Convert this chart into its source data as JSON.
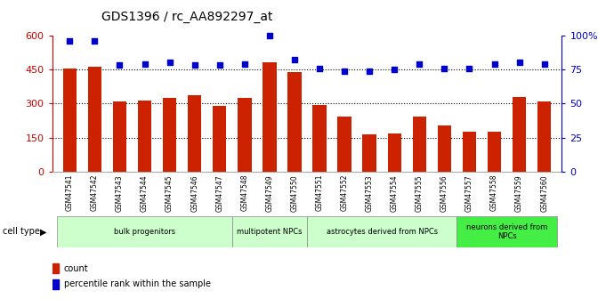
{
  "title": "GDS1396 / rc_AA892297_at",
  "samples": [
    "GSM47541",
    "GSM47542",
    "GSM47543",
    "GSM47544",
    "GSM47545",
    "GSM47546",
    "GSM47547",
    "GSM47548",
    "GSM47549",
    "GSM47550",
    "GSM47551",
    "GSM47552",
    "GSM47553",
    "GSM47554",
    "GSM47555",
    "GSM47556",
    "GSM47557",
    "GSM47558",
    "GSM47559",
    "GSM47560"
  ],
  "counts": [
    455,
    462,
    310,
    315,
    325,
    335,
    290,
    325,
    480,
    440,
    293,
    245,
    165,
    170,
    245,
    205,
    175,
    175,
    330,
    310
  ],
  "percentile": [
    96,
    96,
    78,
    79,
    80,
    78,
    78,
    79,
    100,
    82,
    76,
    74,
    74,
    75,
    79,
    76,
    76,
    79,
    80,
    79
  ],
  "cell_type_labels": [
    "bulk progenitors",
    "multipotent NPCs",
    "astrocytes derived from NPCs",
    "neurons derived from\nNPCs"
  ],
  "cell_type_ranges": [
    [
      0,
      7
    ],
    [
      7,
      10
    ],
    [
      10,
      16
    ],
    [
      16,
      20
    ]
  ],
  "cell_type_colors_light": "#ccffcc",
  "cell_type_color_bright": "#44ee44",
  "bar_color": "#cc2200",
  "dot_color": "#0000cc",
  "ytick_left_color": "#cc0000",
  "ytick_right_color": "#0000cc",
  "title_fontsize": 10,
  "bar_width": 0.55,
  "n_samples": 20
}
